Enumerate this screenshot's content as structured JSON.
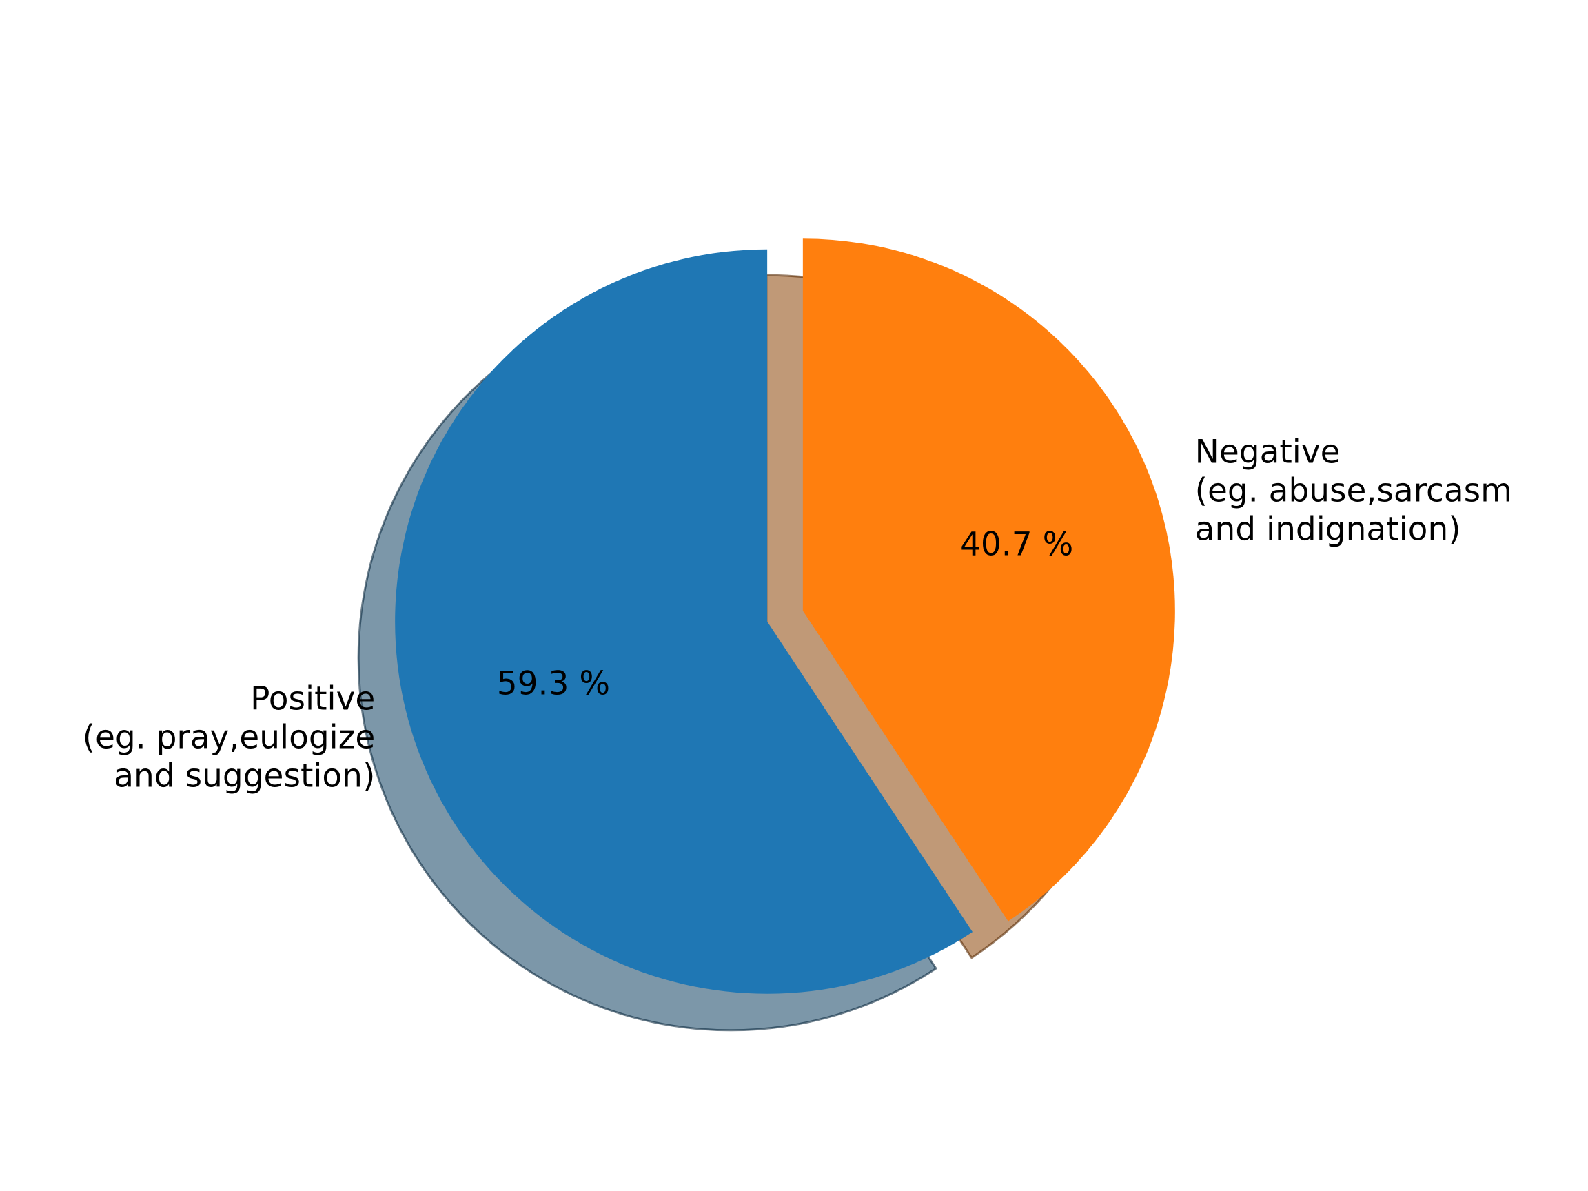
{
  "chart_data": {
    "type": "pie",
    "title": "",
    "slices": [
      {
        "category": "Positive",
        "label_lines": [
          "Positive",
          "(eg. pray,eulogize",
          "and suggestion)"
        ],
        "value": 59.3,
        "pct_label": "59.3 %",
        "color": "#1f77b4",
        "exploded": true
      },
      {
        "category": "Negative",
        "label_lines": [
          "Negative",
          "(eg. abuse,sarcasm",
          "and indignation)"
        ],
        "value": 40.7,
        "pct_label": "40.7 %",
        "color": "#ff7f0e",
        "exploded": true
      }
    ],
    "start_angle": "top (12 o'clock)",
    "direction": "counterclockwise",
    "shadow": true,
    "legend": "none"
  }
}
